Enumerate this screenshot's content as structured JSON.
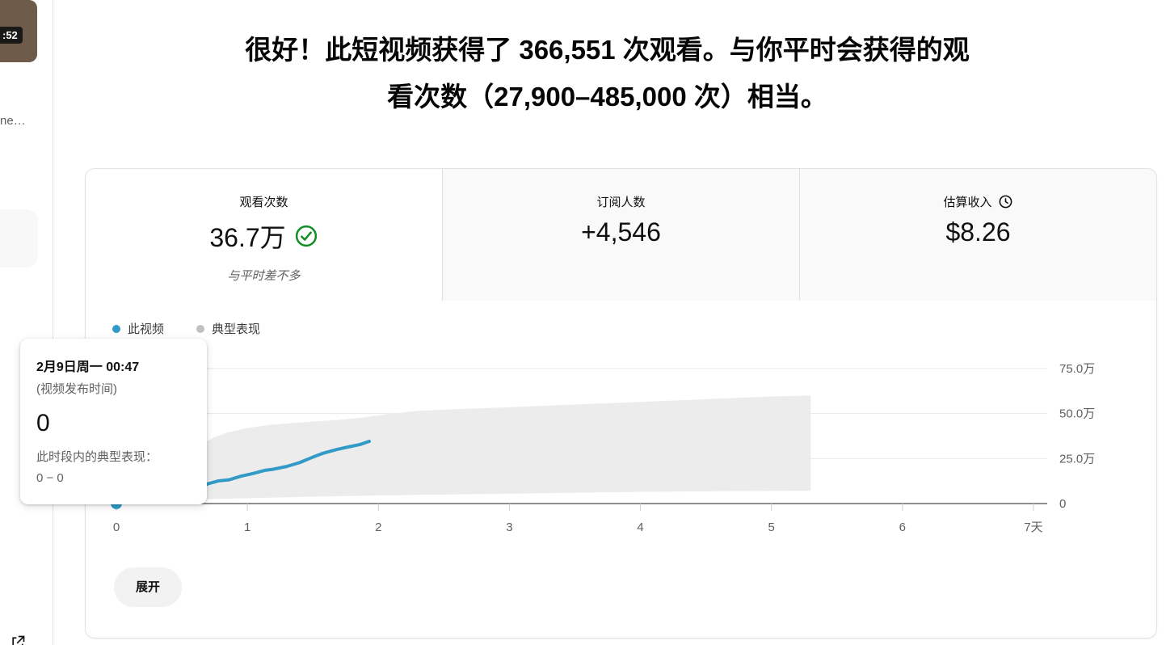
{
  "sidebar": {
    "video_duration_badge": ":52",
    "video_title_truncated": "ne…"
  },
  "header": {
    "title_lines": [
      "很好！此短视频获得了 366,551 次观看。与你平时会获得的观",
      "看次数（27,900–485,000 次）相当。"
    ]
  },
  "metrics_card": {
    "tabs": [
      {
        "label": "观看次数",
        "value": "36.7万",
        "subtitle": "与平时差不多",
        "icon": "check-circle",
        "selected": true
      },
      {
        "label": "订阅人数",
        "value": "+4,546",
        "selected": false
      },
      {
        "label": "估算收入",
        "value": "$8.26",
        "icon": "clock",
        "selected": false
      }
    ],
    "expand_button": "展开"
  },
  "tooltip": {
    "date": "2月9日周一 00:47",
    "publish_note": "(视频发布时间)",
    "value": "0",
    "typical_label": "此时段内的典型表现：",
    "typical_range": "0 − 0"
  },
  "colors": {
    "accent_blue": "#319ac6",
    "typical_gray": "#ececec",
    "legend_gray_dot": "#c0c0c0",
    "success_green": "#148c28"
  },
  "chart_data": {
    "type": "line",
    "legend": [
      {
        "name": "此视频",
        "color": "#319ac6",
        "marker": "dot"
      },
      {
        "name": "典型表现",
        "color": "#c0c0c0",
        "marker": "dot"
      }
    ],
    "x_axis": {
      "unit": "天",
      "range": [
        0,
        7
      ],
      "ticks": [
        {
          "v": 0,
          "label": "0"
        },
        {
          "v": 1,
          "label": "1"
        },
        {
          "v": 2,
          "label": "2"
        },
        {
          "v": 3,
          "label": "3"
        },
        {
          "v": 4,
          "label": "4"
        },
        {
          "v": 5,
          "label": "5"
        },
        {
          "v": 6,
          "label": "6"
        },
        {
          "v": 7,
          "label": "7天"
        }
      ]
    },
    "y_axis": {
      "unit": "万",
      "range_wan": [
        0,
        75
      ],
      "position": "right",
      "ticks": [
        {
          "v": 0,
          "label": "0"
        },
        {
          "v": 25,
          "label": "25.0万"
        },
        {
          "v": 50,
          "label": "50.0万"
        },
        {
          "v": 75,
          "label": "75.0万"
        }
      ]
    },
    "grid": "horizontal",
    "series": [
      {
        "name": "此视频",
        "type": "line",
        "color": "#319ac6",
        "points": [
          [
            0,
            0
          ],
          [
            0.08,
            0.9
          ],
          [
            0.17,
            2.3
          ],
          [
            0.25,
            3.4
          ],
          [
            0.33,
            4.3
          ],
          [
            0.42,
            4.9
          ],
          [
            0.5,
            5.3
          ],
          [
            0.56,
            6.2
          ],
          [
            0.63,
            8.8
          ],
          [
            0.7,
            11
          ],
          [
            0.78,
            12.6
          ],
          [
            0.86,
            13.2
          ],
          [
            0.95,
            15.2
          ],
          [
            1.05,
            16.8
          ],
          [
            1.13,
            18.4
          ],
          [
            1.2,
            19.1
          ],
          [
            1.3,
            20.6
          ],
          [
            1.4,
            22.8
          ],
          [
            1.5,
            25.8
          ],
          [
            1.58,
            28
          ],
          [
            1.68,
            30
          ],
          [
            1.78,
            31.6
          ],
          [
            1.86,
            32.8
          ],
          [
            1.93,
            34.6
          ]
        ]
      },
      {
        "name": "典型表现",
        "type": "band",
        "color": "#ececec",
        "upper": [
          [
            0,
            0.5
          ],
          [
            0.08,
            6
          ],
          [
            0.16,
            13
          ],
          [
            0.25,
            21
          ],
          [
            0.33,
            26
          ],
          [
            0.42,
            28.5
          ],
          [
            0.5,
            29.5
          ],
          [
            0.58,
            30.5
          ],
          [
            0.65,
            33
          ],
          [
            0.75,
            37
          ],
          [
            0.85,
            39.5
          ],
          [
            1.0,
            42
          ],
          [
            1.15,
            43.5
          ],
          [
            1.3,
            44.5
          ],
          [
            1.5,
            45.5
          ],
          [
            1.7,
            46.5
          ],
          [
            1.9,
            48
          ],
          [
            2.1,
            50
          ],
          [
            2.3,
            51.5
          ],
          [
            2.6,
            52.5
          ],
          [
            3.0,
            53.5
          ],
          [
            3.5,
            55
          ],
          [
            4.0,
            56.5
          ],
          [
            4.5,
            58
          ],
          [
            5.0,
            59.5
          ],
          [
            5.3,
            60
          ]
        ],
        "lower": [
          [
            0,
            0.2
          ],
          [
            0.3,
            1.5
          ],
          [
            0.6,
            2.3
          ],
          [
            1.0,
            3
          ],
          [
            1.5,
            3.8
          ],
          [
            2.0,
            4.5
          ],
          [
            2.5,
            5
          ],
          [
            3.0,
            5.5
          ],
          [
            3.5,
            6
          ],
          [
            4.0,
            6.5
          ],
          [
            4.5,
            6.8
          ],
          [
            5.0,
            7
          ],
          [
            5.3,
            7.1
          ]
        ]
      }
    ],
    "highlighted_point": {
      "x_day": 0,
      "value_wan": 0
    }
  }
}
